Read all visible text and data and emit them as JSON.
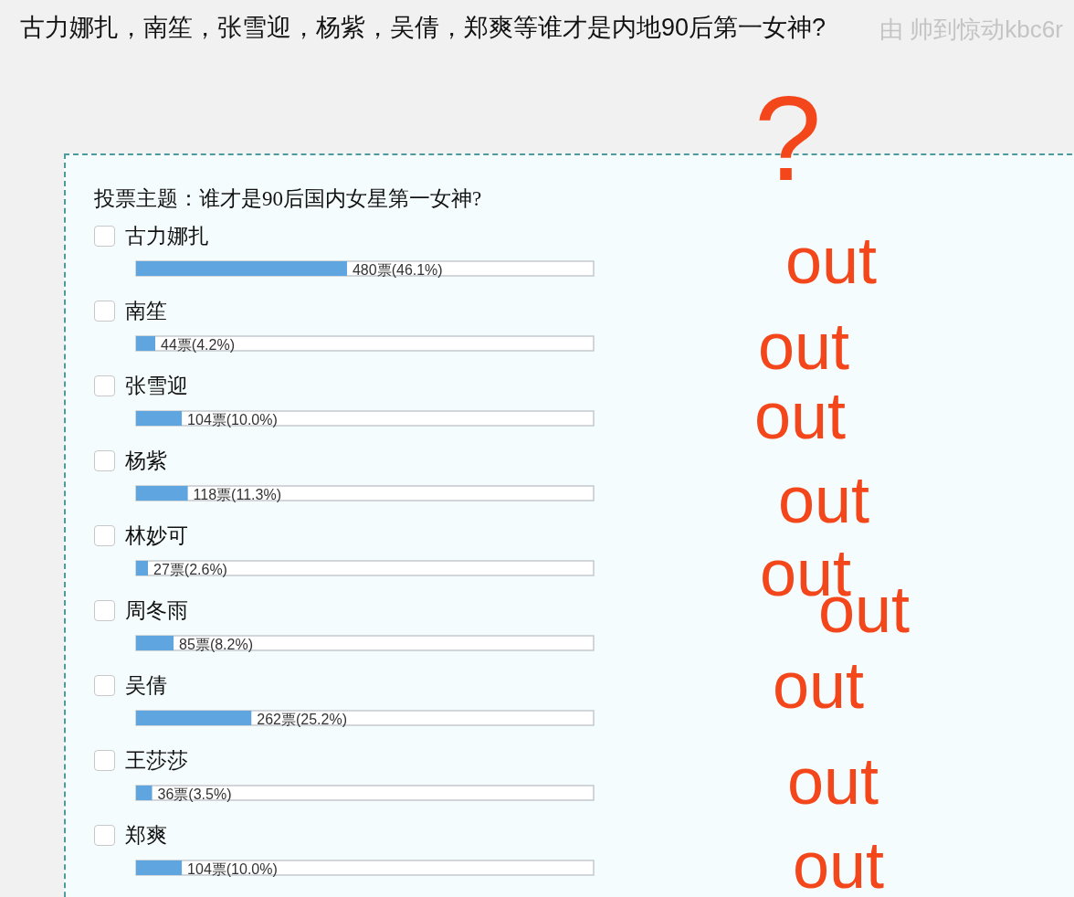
{
  "chart_data": {
    "type": "bar",
    "orientation": "horizontal",
    "title": "古力娜扎，南笙，张雪迎，杨紫，吴倩，郑爽等谁才是内地90后第一女神?",
    "subtitle": "投票主题：谁才是90后国内女星第一女神?",
    "categories": [
      "古力娜扎",
      "南笙",
      "张雪迎",
      "杨紫",
      "林妙可",
      "周冬雨",
      "吴倩",
      "王莎莎",
      "郑爽"
    ],
    "values": [
      46.1,
      4.2,
      10.0,
      11.3,
      2.6,
      8.2,
      25.2,
      3.5,
      10.0
    ],
    "value_labels": [
      "480票(46.1%)",
      "44票(4.2%)",
      "104票(10.0%)",
      "118票(11.3%)",
      "27票(2.6%)",
      "85票(8.2%)",
      "262票(25.2%)",
      "36票(3.5%)",
      "104票(10.0%)"
    ],
    "color": "#5fa5e0",
    "xlim": [
      0,
      100
    ],
    "tick_labels": "y",
    "annotations": [
      "由 帅到惊动kbc6r",
      "?",
      "out",
      "out",
      "out",
      "out",
      "out",
      "out",
      "out",
      "out",
      "out"
    ]
  }
}
